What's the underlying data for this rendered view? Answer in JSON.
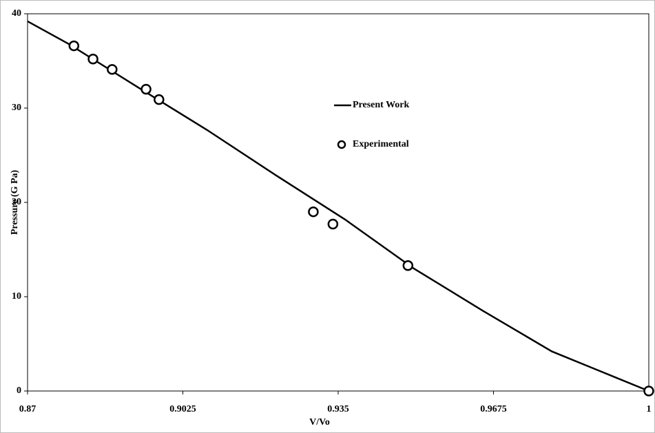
{
  "chart_data": {
    "type": "line",
    "xlabel": "V/Vo",
    "ylabel": "Pressure (G Pa)",
    "xlim": [
      0.87,
      1
    ],
    "xticks": [
      0.87,
      0.9025,
      0.935,
      0.9675,
      1
    ],
    "ylim": [
      0,
      40
    ],
    "yticks": [
      0,
      10,
      20,
      30,
      40
    ],
    "grid": false,
    "series": [
      {
        "name": "Present Work",
        "type": "line",
        "color": "#000000",
        "x": [
          0.87,
          0.8786,
          0.8931,
          0.9075,
          0.9219,
          0.9364,
          0.9508,
          0.9653,
          0.9797,
          0.9884,
          1
        ],
        "values": [
          39.2,
          36.8,
          32.2,
          27.7,
          22.9,
          18.2,
          13.0,
          8.5,
          4.2,
          2.4,
          0
        ]
      },
      {
        "name": "Experimental",
        "type": "scatter",
        "color": "#000000",
        "x": [
          0.8797,
          0.8837,
          0.8877,
          0.8948,
          0.8975,
          0.9298,
          0.9339,
          0.9496,
          1
        ],
        "values": [
          36.6,
          35.2,
          34.1,
          32.0,
          30.9,
          19.0,
          17.7,
          13.3,
          0
        ]
      }
    ]
  }
}
